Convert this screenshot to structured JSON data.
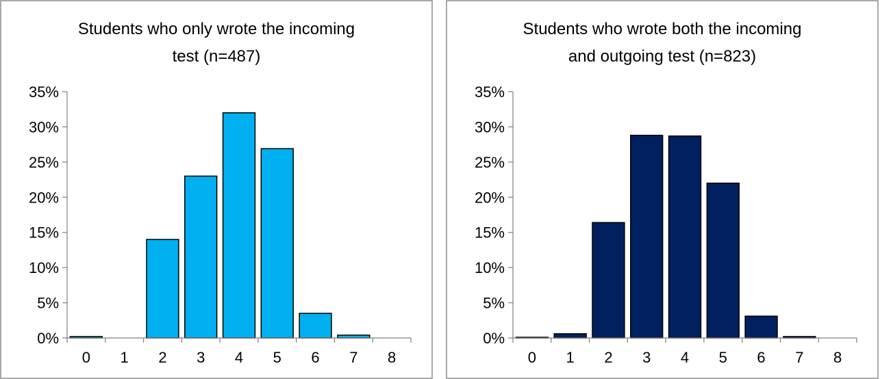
{
  "chart_data": [
    {
      "type": "bar",
      "title_lines": [
        "Students who only wrote the incoming",
        "test (n=487)"
      ],
      "xlabel": "",
      "ylabel": "",
      "categories": [
        "0",
        "1",
        "2",
        "3",
        "4",
        "5",
        "6",
        "7",
        "8"
      ],
      "values": [
        0.2,
        0.0,
        14.0,
        23.0,
        32.0,
        26.9,
        3.5,
        0.4,
        0.0
      ],
      "ylim": [
        0,
        35
      ],
      "yticks": [
        0,
        5,
        10,
        15,
        20,
        25,
        30,
        35
      ],
      "ytick_labels": [
        "0%",
        "5%",
        "10%",
        "15%",
        "20%",
        "25%",
        "30%",
        "35%"
      ],
      "bar_color": "#00b0f0",
      "grid": false,
      "legend": "none"
    },
    {
      "type": "bar",
      "title_lines": [
        "Students who wrote both the incoming",
        "and outgoing test (n=823)"
      ],
      "xlabel": "",
      "ylabel": "",
      "categories": [
        "0",
        "1",
        "2",
        "3",
        "4",
        "5",
        "6",
        "7",
        "8"
      ],
      "values": [
        0.1,
        0.6,
        16.4,
        28.8,
        28.7,
        22.0,
        3.1,
        0.2,
        0.0
      ],
      "ylim": [
        0,
        35
      ],
      "yticks": [
        0,
        5,
        10,
        15,
        20,
        25,
        30,
        35
      ],
      "ytick_labels": [
        "0%",
        "5%",
        "10%",
        "15%",
        "20%",
        "25%",
        "30%",
        "35%"
      ],
      "bar_color": "#002060",
      "grid": false,
      "legend": "none"
    }
  ]
}
